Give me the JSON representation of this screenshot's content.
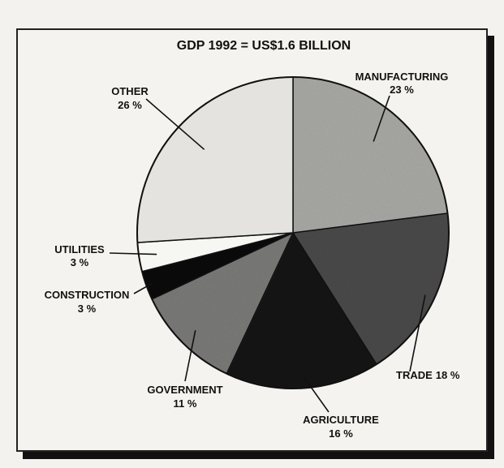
{
  "chart_data": {
    "type": "pie",
    "title": "GDP 1992 = US$1.6 BILLION",
    "slices": [
      {
        "name": "MANUFACTURING",
        "value": 23,
        "value_label": "23 %",
        "color": "#a9a9a6"
      },
      {
        "name": "TRADE",
        "value": 18,
        "value_label": "18 %",
        "color": "#4a4a4a"
      },
      {
        "name": "AGRICULTURE",
        "value": 16,
        "value_label": "16 %",
        "color": "#141414"
      },
      {
        "name": "GOVERNMENT",
        "value": 11,
        "value_label": "11 %",
        "color": "#7a7a78"
      },
      {
        "name": "CONSTRUCTION",
        "value": 3,
        "value_label": "3 %",
        "color": "#0a0a0a"
      },
      {
        "name": "UTILITIES",
        "value": 3,
        "value_label": "3 %",
        "color": "#f6f6f3"
      },
      {
        "name": "OTHER",
        "value": 26,
        "value_label": "26 %",
        "color": "#e4e3df"
      }
    ]
  }
}
